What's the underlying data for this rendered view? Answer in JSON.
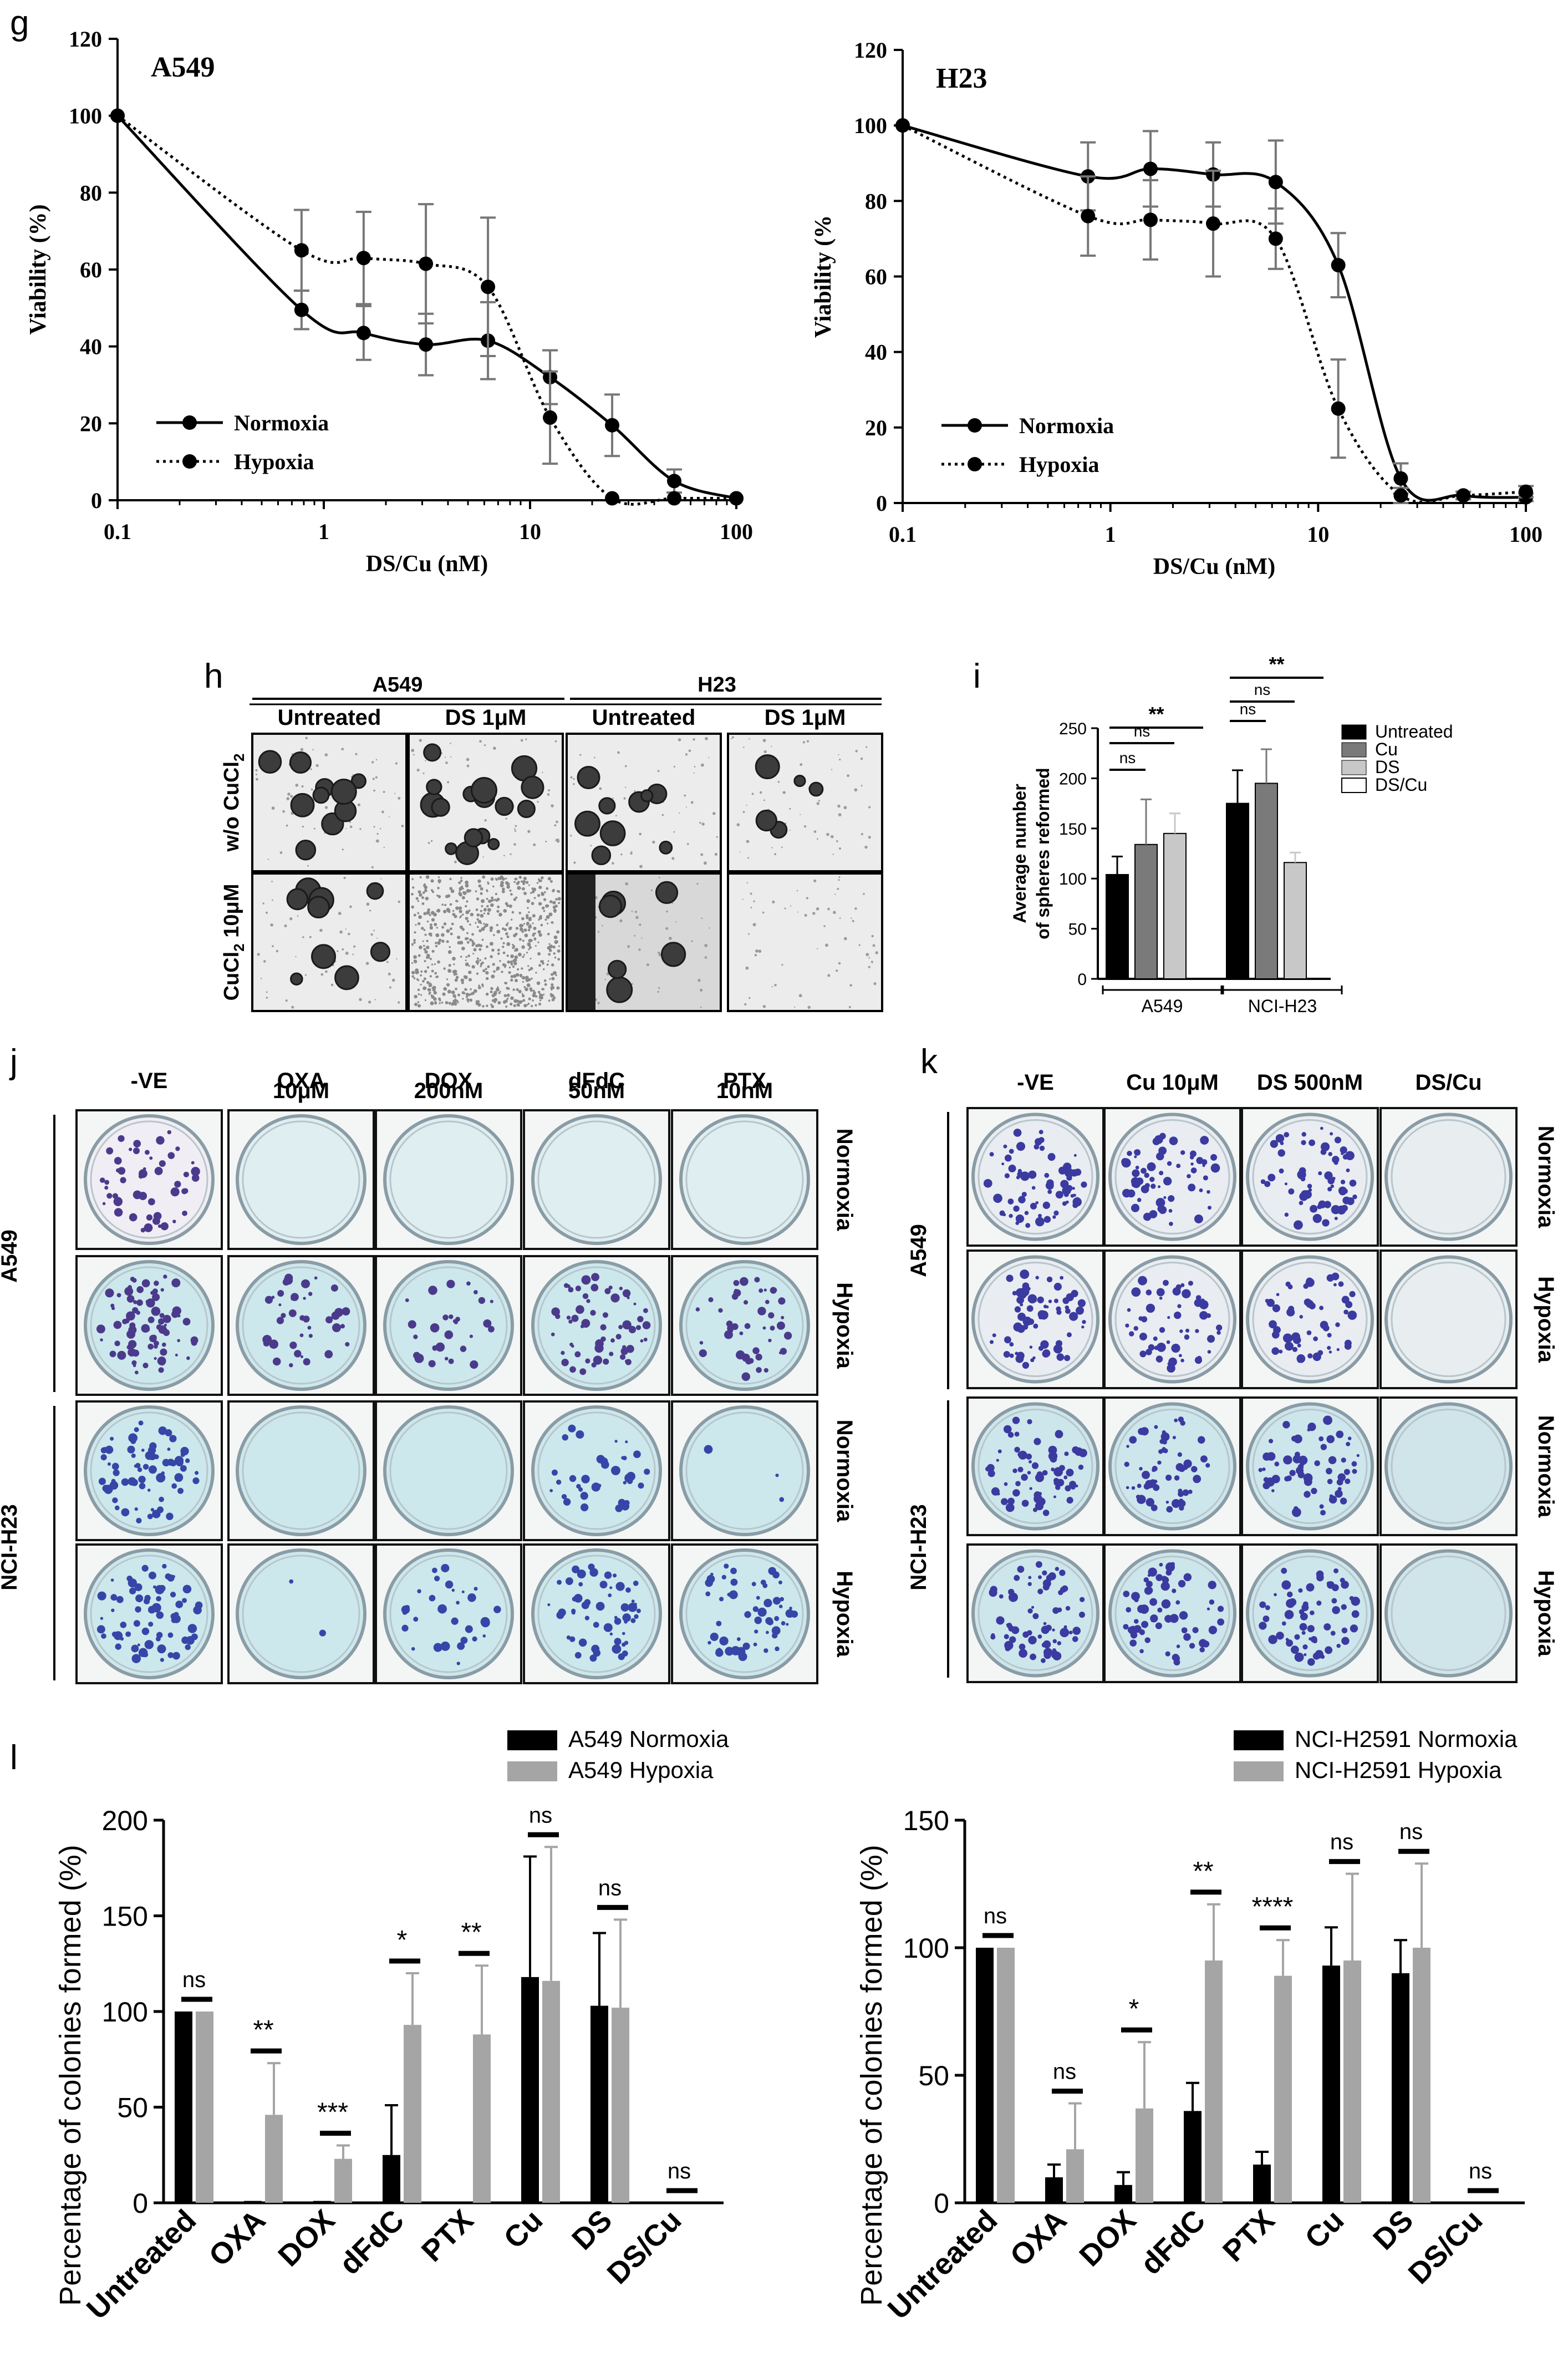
{
  "panels": {
    "g": {
      "label": "g",
      "charts": [
        {
          "type": "line",
          "title": "A549",
          "xlabel": "DS/Cu (nM)",
          "ylabel": "Viability  (%)",
          "xscale": "log",
          "xlim": [
            0.1,
            100
          ],
          "ylim": [
            0,
            120
          ],
          "xticks": [
            0.1,
            1,
            10,
            100
          ],
          "xtick_labels": [
            "0.1",
            "1",
            "10",
            "100"
          ],
          "yticks": [
            0,
            20,
            40,
            60,
            80,
            100,
            120
          ],
          "legend": "bottom-left",
          "series": [
            {
              "name": "Normoxia",
              "style": "solid",
              "x": [
                0.1,
                0.78,
                1.56,
                3.125,
                6.25,
                12.5,
                25,
                50,
                100
              ],
              "y": [
                100,
                49.5,
                43.5,
                40.5,
                41.5,
                32,
                19.5,
                5,
                0.5
              ],
              "err": [
                0,
                5,
                7,
                8,
                10,
                7,
                8,
                3,
                0
              ]
            },
            {
              "name": "Hypoxia",
              "style": "dotted",
              "x": [
                0.1,
                0.78,
                1.56,
                3.125,
                6.25,
                12.5,
                25,
                50,
                100
              ],
              "y": [
                100,
                65,
                63,
                61.5,
                55.5,
                21.5,
                0.5,
                0.5,
                0.5
              ],
              "err": [
                0,
                10.5,
                12,
                15.5,
                18,
                12,
                0,
                0,
                0
              ]
            }
          ]
        },
        {
          "type": "line",
          "title": "H23",
          "xlabel": "DS/Cu (nM)",
          "ylabel": "Viability  (%",
          "xscale": "log",
          "xlim": [
            0.1,
            100
          ],
          "ylim": [
            0,
            120
          ],
          "xticks": [
            0.1,
            1,
            10,
            100
          ],
          "xtick_labels": [
            "0.1",
            "1",
            "10",
            "100"
          ],
          "yticks": [
            0,
            20,
            40,
            60,
            80,
            100,
            120
          ],
          "legend": "bottom-left",
          "series": [
            {
              "name": "Normoxia",
              "style": "solid",
              "x": [
                0.1,
                0.78,
                1.56,
                3.125,
                6.25,
                12.5,
                25,
                50,
                100
              ],
              "y": [
                100,
                86.5,
                88.5,
                87,
                85,
                63,
                6.5,
                2,
                1.5
              ],
              "err": [
                0,
                9,
                10,
                8.5,
                11,
                8.5,
                4,
                1,
                1
              ]
            },
            {
              "name": "Hypoxia",
              "style": "dotted",
              "x": [
                0.1,
                0.78,
                1.56,
                3.125,
                6.25,
                12.5,
                25,
                50,
                100
              ],
              "y": [
                100,
                76,
                75,
                74,
                70,
                25,
                2,
                2,
                3
              ],
              "err": [
                0,
                10.5,
                10.5,
                14,
                8,
                13,
                2,
                1,
                1.5
              ]
            }
          ]
        }
      ]
    },
    "h": {
      "label": "h",
      "cell_lines": [
        "A549",
        "H23"
      ],
      "treatments": [
        "Untreated",
        "DS 1μM",
        "Untreated",
        "DS 1μM"
      ],
      "rows": [
        "w/o CuCl",
        "CuCl"
      ],
      "row_sub": "2",
      "row_suffix_2": " 10μM"
    },
    "i": {
      "label": "i",
      "chart_data": {
        "type": "bar",
        "ylabel_line1": "Average number",
        "ylabel_line2": "of spheres reformed",
        "ylim": [
          0,
          250
        ],
        "yticks": [
          0,
          50,
          100,
          150,
          200,
          250
        ],
        "groups": [
          "A549",
          "NCI-H23"
        ],
        "legend": "top-right",
        "series": [
          {
            "name": "Untreated",
            "color": "#000000",
            "values": [
              104,
              175
            ],
            "err": [
              18,
              33
            ]
          },
          {
            "name": "Cu",
            "color": "#7a7a7a",
            "values": [
              134,
              195
            ],
            "err": [
              45,
              34
            ]
          },
          {
            "name": "DS",
            "color": "#c8c8c8",
            "values": [
              145,
              116
            ],
            "err": [
              20,
              10
            ]
          },
          {
            "name": "DS/Cu",
            "color": "#ffffff",
            "values": [
              0,
              0
            ],
            "err": [
              0,
              0
            ]
          }
        ],
        "significance": [
          {
            "group": "A549",
            "label": "ns"
          },
          {
            "group": "A549",
            "label": "ns"
          },
          {
            "group": "A549",
            "label": "**"
          },
          {
            "group": "NCI-H23",
            "label": "ns"
          },
          {
            "group": "NCI-H23",
            "label": "ns"
          },
          {
            "group": "NCI-H23",
            "label": "**"
          }
        ]
      }
    },
    "j": {
      "label": "j",
      "columns": [
        [
          "-VE",
          ""
        ],
        [
          "OXA",
          "10μM"
        ],
        [
          "DOX",
          "200nM"
        ],
        [
          "dFdC",
          "50nM"
        ],
        [
          "PTX",
          "10nM"
        ]
      ],
      "cell_lines": [
        "A549",
        "NCI-H23"
      ],
      "conditions": [
        "Normoxia",
        "Hypoxia",
        "Normoxia",
        "Hypoxia"
      ],
      "colonies": [
        [
          50,
          0,
          0,
          0,
          0
        ],
        [
          80,
          40,
          30,
          60,
          45
        ],
        [
          70,
          0,
          0,
          35,
          3
        ],
        [
          70,
          2,
          30,
          55,
          55
        ]
      ]
    },
    "k": {
      "label": "k",
      "columns": [
        "-VE",
        "Cu 10μM",
        "DS 500nM",
        "DS/Cu"
      ],
      "cell_lines": [
        "A549",
        "NCI-H23"
      ],
      "conditions": [
        "Normoxia",
        "Hypoxia",
        "Normoxia",
        "Hypoxia"
      ],
      "colonies": [
        [
          70,
          65,
          65,
          0
        ],
        [
          70,
          55,
          55,
          0
        ],
        [
          70,
          60,
          60,
          0
        ],
        [
          70,
          65,
          60,
          0
        ]
      ]
    },
    "l": {
      "label": "l",
      "chart_data": [
        {
          "type": "bar",
          "ylabel": "Percentage of colonies formed (%)",
          "ylim": [
            0,
            200
          ],
          "yticks": [
            0,
            50,
            100,
            150,
            200
          ],
          "categories": [
            "Untreated",
            "OXA",
            "DOX",
            "dFdC",
            "PTX",
            "Cu",
            "DS",
            "DS/Cu"
          ],
          "legend": "top",
          "series": [
            {
              "name": "A549 Normoxia",
              "color": "#000000",
              "values": [
                100,
                1,
                1,
                25,
                0,
                118,
                103,
                0
              ],
              "err": [
                0,
                0,
                0,
                26,
                0,
                63,
                38,
                0
              ]
            },
            {
              "name": "A549 Hypoxia",
              "color": "#a5a5a5",
              "values": [
                100,
                46,
                23,
                93,
                88,
                116,
                102,
                0
              ],
              "err": [
                0,
                27,
                7,
                27,
                36,
                70,
                46,
                0
              ]
            }
          ],
          "significance": [
            "ns",
            "**",
            "***",
            "*",
            "**",
            "ns",
            "ns",
            "ns"
          ]
        },
        {
          "type": "bar",
          "ylabel": "Percentage of colonies formed (%)",
          "ylim": [
            0,
            150
          ],
          "yticks": [
            0,
            50,
            100,
            150
          ],
          "categories": [
            "Untreated",
            "OXA",
            "DOX",
            "dFdC",
            "PTX",
            "Cu",
            "DS",
            "DS/Cu"
          ],
          "legend": "top",
          "series": [
            {
              "name": "NCI-H2591 Normoxia",
              "color": "#000000",
              "values": [
                100,
                10,
                7,
                36,
                15,
                93,
                90,
                0
              ],
              "err": [
                0,
                5,
                5,
                11,
                5,
                15,
                13,
                0
              ]
            },
            {
              "name": "NCI-H2591 Hypoxia",
              "color": "#a5a5a5",
              "values": [
                100,
                21,
                37,
                95,
                89,
                95,
                100,
                0
              ],
              "err": [
                0,
                18,
                26,
                22,
                14,
                34,
                33,
                0
              ]
            }
          ],
          "significance": [
            "ns",
            "ns",
            "*",
            "**",
            "****",
            "ns",
            "ns",
            "ns"
          ]
        }
      ]
    }
  }
}
